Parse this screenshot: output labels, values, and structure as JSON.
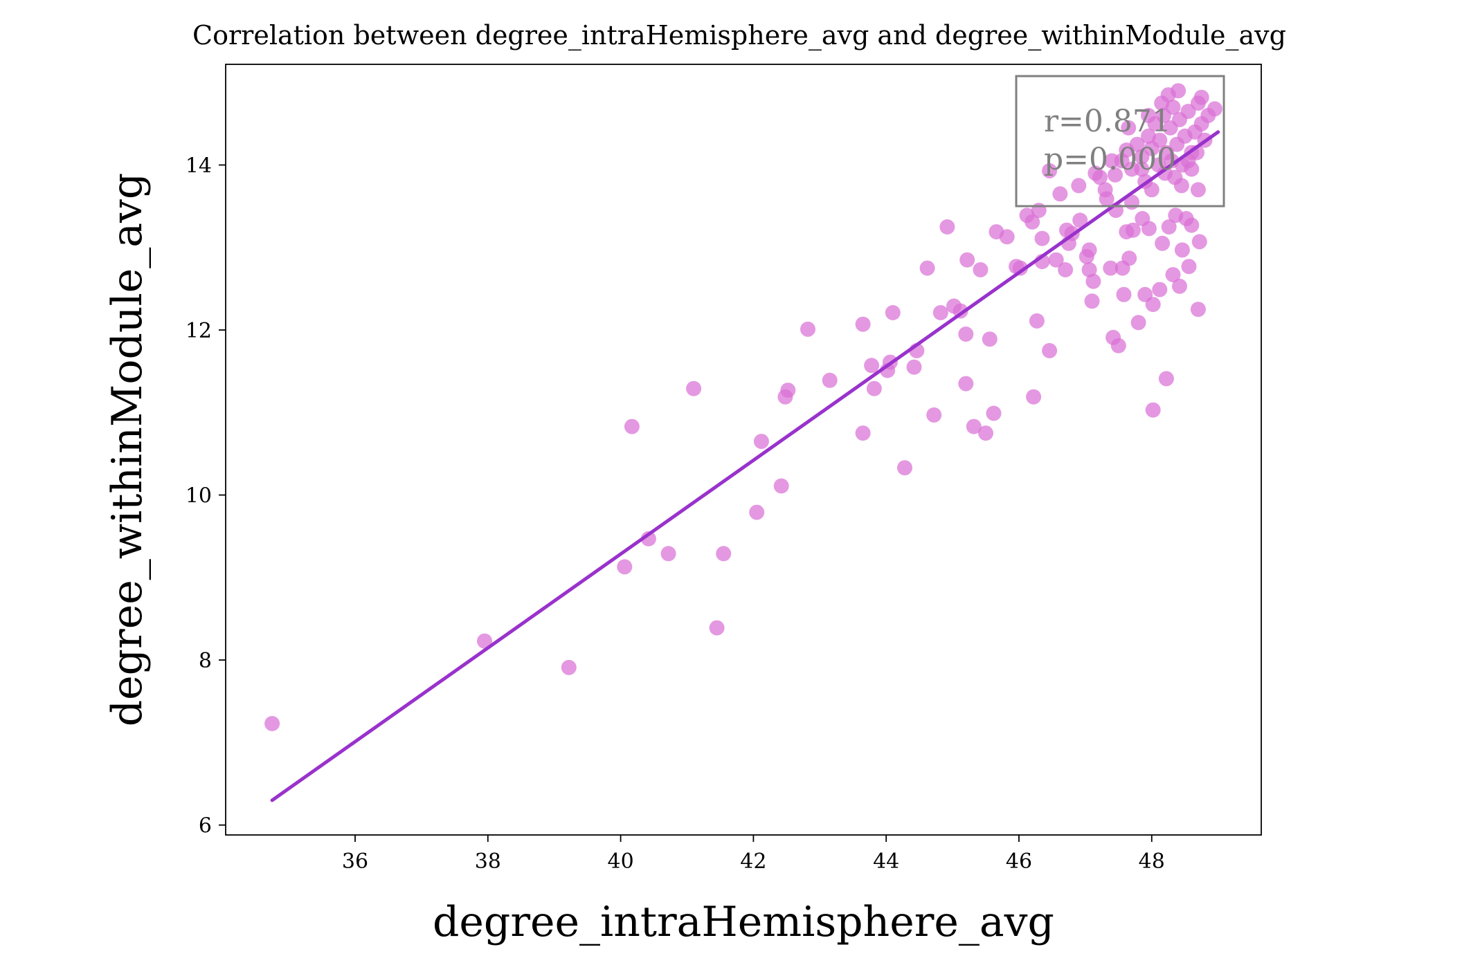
{
  "chart_data": {
    "type": "scatter",
    "title": "Correlation between degree_intraHemisphere_avg and degree_withinModule_avg",
    "xlabel": "degree_intraHemisphere_avg",
    "ylabel": "degree_withinModule_avg",
    "xlim": [
      34.05,
      49.65
    ],
    "ylim": [
      5.88,
      15.22
    ],
    "xticks": [
      36,
      38,
      40,
      42,
      44,
      46,
      48
    ],
    "yticks": [
      6,
      8,
      10,
      12,
      14
    ],
    "grid": false,
    "point_color": "#DA70D6",
    "line_color": "#9932CC",
    "regression": {
      "x": [
        34.75,
        49.0
      ],
      "y": [
        6.3,
        14.4
      ]
    },
    "annotation": {
      "lines": [
        "r=0.871",
        "p=0.000"
      ],
      "placement": "top-right"
    },
    "points": [
      [
        34.75,
        7.23
      ],
      [
        37.95,
        8.23
      ],
      [
        39.22,
        7.91
      ],
      [
        40.06,
        9.13
      ],
      [
        40.17,
        10.83
      ],
      [
        40.42,
        9.47
      ],
      [
        40.72,
        9.29
      ],
      [
        41.1,
        11.29
      ],
      [
        41.45,
        8.39
      ],
      [
        41.55,
        9.29
      ],
      [
        42.05,
        9.79
      ],
      [
        42.12,
        10.65
      ],
      [
        42.42,
        10.11
      ],
      [
        42.48,
        11.19
      ],
      [
        42.52,
        11.27
      ],
      [
        42.82,
        12.01
      ],
      [
        43.15,
        11.39
      ],
      [
        43.65,
        10.75
      ],
      [
        43.65,
        12.07
      ],
      [
        43.78,
        11.57
      ],
      [
        43.82,
        11.29
      ],
      [
        44.02,
        11.51
      ],
      [
        44.06,
        11.61
      ],
      [
        44.1,
        12.21
      ],
      [
        44.28,
        10.33
      ],
      [
        44.42,
        11.55
      ],
      [
        44.46,
        11.75
      ],
      [
        44.62,
        12.75
      ],
      [
        44.72,
        10.97
      ],
      [
        44.82,
        12.21
      ],
      [
        44.92,
        13.25
      ],
      [
        45.02,
        12.29
      ],
      [
        45.12,
        12.23
      ],
      [
        45.2,
        11.35
      ],
      [
        45.2,
        11.95
      ],
      [
        45.22,
        12.85
      ],
      [
        45.32,
        10.83
      ],
      [
        45.42,
        12.73
      ],
      [
        45.5,
        10.75
      ],
      [
        45.56,
        11.89
      ],
      [
        45.62,
        10.99
      ],
      [
        45.66,
        13.19
      ],
      [
        45.82,
        13.13
      ],
      [
        45.96,
        12.77
      ],
      [
        46.02,
        12.75
      ],
      [
        46.12,
        13.39
      ],
      [
        46.2,
        13.31
      ],
      [
        46.22,
        11.19
      ],
      [
        46.27,
        12.11
      ],
      [
        46.3,
        13.45
      ],
      [
        46.35,
        13.11
      ],
      [
        46.35,
        12.83
      ],
      [
        46.46,
        11.75
      ],
      [
        46.46,
        13.93
      ],
      [
        46.56,
        12.85
      ],
      [
        46.62,
        13.65
      ],
      [
        46.7,
        12.73
      ],
      [
        46.72,
        13.21
      ],
      [
        46.75,
        13.05
      ],
      [
        46.8,
        13.17
      ],
      [
        46.92,
        13.33
      ],
      [
        47.02,
        12.89
      ],
      [
        47.06,
        12.97
      ],
      [
        47.06,
        12.73
      ],
      [
        47.1,
        12.35
      ],
      [
        47.12,
        12.59
      ],
      [
        47.22,
        13.85
      ],
      [
        47.32,
        13.59
      ],
      [
        47.38,
        12.75
      ],
      [
        47.42,
        11.91
      ],
      [
        47.46,
        13.45
      ],
      [
        47.5,
        11.81
      ],
      [
        47.56,
        12.75
      ],
      [
        47.58,
        12.43
      ],
      [
        47.62,
        13.19
      ],
      [
        47.66,
        12.87
      ],
      [
        47.72,
        13.21
      ],
      [
        47.8,
        12.09
      ],
      [
        47.86,
        13.35
      ],
      [
        47.9,
        12.43
      ],
      [
        47.96,
        13.23
      ],
      [
        48.02,
        12.31
      ],
      [
        48.02,
        11.03
      ],
      [
        48.12,
        12.49
      ],
      [
        48.16,
        13.05
      ],
      [
        48.22,
        11.41
      ],
      [
        48.26,
        13.25
      ],
      [
        48.32,
        12.67
      ],
      [
        48.36,
        13.39
      ],
      [
        48.42,
        12.53
      ],
      [
        48.46,
        12.97
      ],
      [
        48.52,
        13.35
      ],
      [
        48.56,
        12.77
      ],
      [
        48.6,
        13.27
      ],
      [
        48.7,
        12.25
      ],
      [
        48.72,
        13.07
      ],
      [
        47.3,
        13.7
      ],
      [
        47.45,
        13.88
      ],
      [
        47.55,
        14.05
      ],
      [
        47.62,
        14.18
      ],
      [
        47.7,
        13.95
      ],
      [
        47.78,
        14.25
      ],
      [
        47.85,
        14.1
      ],
      [
        47.9,
        13.8
      ],
      [
        47.95,
        14.35
      ],
      [
        48.0,
        14.2
      ],
      [
        48.05,
        14.5
      ],
      [
        48.1,
        14.0
      ],
      [
        48.12,
        14.3
      ],
      [
        48.18,
        14.6
      ],
      [
        48.22,
        14.15
      ],
      [
        48.28,
        14.45
      ],
      [
        48.32,
        14.7
      ],
      [
        48.38,
        14.25
      ],
      [
        48.42,
        14.55
      ],
      [
        48.46,
        14.0
      ],
      [
        48.5,
        14.35
      ],
      [
        48.55,
        14.65
      ],
      [
        48.6,
        14.15
      ],
      [
        48.65,
        14.4
      ],
      [
        48.7,
        14.75
      ],
      [
        48.75,
        14.5
      ],
      [
        48.8,
        14.3
      ],
      [
        48.85,
        14.6
      ],
      [
        48.95,
        14.68
      ],
      [
        48.2,
        13.9
      ],
      [
        48.35,
        13.85
      ],
      [
        48.6,
        13.95
      ],
      [
        48.7,
        13.7
      ],
      [
        48.0,
        13.7
      ],
      [
        47.7,
        13.55
      ],
      [
        48.4,
        14.9
      ],
      [
        48.75,
        14.82
      ],
      [
        48.25,
        14.85
      ],
      [
        47.95,
        14.6
      ],
      [
        47.4,
        14.05
      ],
      [
        47.15,
        13.9
      ],
      [
        46.9,
        13.75
      ],
      [
        47.65,
        14.45
      ],
      [
        48.15,
        14.75
      ],
      [
        48.55,
        14.05
      ],
      [
        48.45,
        13.75
      ],
      [
        48.68,
        14.15
      ],
      [
        47.85,
        13.95
      ],
      [
        48.3,
        14.05
      ]
    ]
  }
}
